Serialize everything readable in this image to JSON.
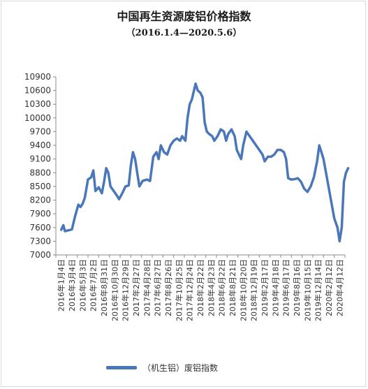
{
  "chart_data": {
    "type": "line",
    "title": "中国再生资源废铝价格指数",
    "subtitle": "（2016.1.4—2020.5.6）",
    "xlabel": "",
    "ylabel": "",
    "ylim": [
      7000,
      10900
    ],
    "yticks": [
      "7000",
      "7300",
      "7600",
      "7900",
      "8200",
      "8500",
      "8800",
      "9100",
      "9400",
      "9700",
      "10000",
      "10300",
      "10600",
      "10900"
    ],
    "x_tick_labels": [
      "2016年1月4日",
      "2016年3月4日",
      "2016年5月3日",
      "2016年7月2日",
      "2016年8月31日",
      "2016年10月30日",
      "2016年12月29日",
      "2017年2月27日",
      "2017年4月28日",
      "2017年6月27日",
      "2017年8月26日",
      "2017年10月25日",
      "2017年12月24日",
      "2018年2月22日",
      "2018年4月23日",
      "2018年6月22日",
      "2018年8月21日",
      "2018年10月20日",
      "2018年12月19日",
      "2019年2月17日",
      "2019年4月18日",
      "2019年6月17日",
      "2019年8月16日",
      "2019年10月15日",
      "2019年12月14日",
      "2020年2月12日",
      "2020年4月12日"
    ],
    "legend": {
      "position": "bottom"
    },
    "grid": false,
    "series": [
      {
        "name": "（机生铝）废铝指数",
        "color": "#4a76ba",
        "points": [
          [
            0,
            7550
          ],
          [
            0.2,
            7650
          ],
          [
            0.35,
            7520
          ],
          [
            0.7,
            7540
          ],
          [
            1.0,
            7560
          ],
          [
            1.3,
            7850
          ],
          [
            1.6,
            8100
          ],
          [
            1.8,
            8050
          ],
          [
            2.0,
            8120
          ],
          [
            2.2,
            8250
          ],
          [
            2.5,
            8650
          ],
          [
            2.8,
            8700
          ],
          [
            3.0,
            8850
          ],
          [
            3.2,
            8400
          ],
          [
            3.5,
            8480
          ],
          [
            3.8,
            8350
          ],
          [
            4.0,
            8600
          ],
          [
            4.2,
            8900
          ],
          [
            4.4,
            8800
          ],
          [
            4.6,
            8500
          ],
          [
            4.9,
            8400
          ],
          [
            5.2,
            8300
          ],
          [
            5.4,
            8220
          ],
          [
            5.7,
            8350
          ],
          [
            6.0,
            8500
          ],
          [
            6.3,
            8520
          ],
          [
            6.5,
            8950
          ],
          [
            6.7,
            9250
          ],
          [
            6.9,
            9100
          ],
          [
            7.1,
            8800
          ],
          [
            7.3,
            8500
          ],
          [
            7.6,
            8620
          ],
          [
            8.0,
            8650
          ],
          [
            8.3,
            8620
          ],
          [
            8.6,
            9150
          ],
          [
            8.9,
            9250
          ],
          [
            9.1,
            9100
          ],
          [
            9.3,
            9400
          ],
          [
            9.6,
            9250
          ],
          [
            9.9,
            9200
          ],
          [
            10.2,
            9400
          ],
          [
            10.5,
            9500
          ],
          [
            10.8,
            9550
          ],
          [
            11.1,
            9500
          ],
          [
            11.3,
            9600
          ],
          [
            11.6,
            9500
          ],
          [
            11.8,
            10000
          ],
          [
            12.0,
            10300
          ],
          [
            12.2,
            10400
          ],
          [
            12.4,
            10600
          ],
          [
            12.55,
            10750
          ],
          [
            12.75,
            10600
          ],
          [
            13.0,
            10550
          ],
          [
            13.2,
            10450
          ],
          [
            13.4,
            9900
          ],
          [
            13.6,
            9700
          ],
          [
            13.8,
            9650
          ],
          [
            14.1,
            9600
          ],
          [
            14.3,
            9500
          ],
          [
            14.6,
            9600
          ],
          [
            14.9,
            9750
          ],
          [
            15.2,
            9700
          ],
          [
            15.4,
            9500
          ],
          [
            15.6,
            9650
          ],
          [
            15.9,
            9750
          ],
          [
            16.2,
            9600
          ],
          [
            16.4,
            9300
          ],
          [
            16.6,
            9200
          ],
          [
            16.8,
            9100
          ],
          [
            17.0,
            9400
          ],
          [
            17.3,
            9700
          ],
          [
            17.6,
            9600
          ],
          [
            17.9,
            9500
          ],
          [
            18.2,
            9400
          ],
          [
            18.5,
            9300
          ],
          [
            18.8,
            9200
          ],
          [
            19.0,
            9050
          ],
          [
            19.3,
            9150
          ],
          [
            19.6,
            9150
          ],
          [
            19.9,
            9200
          ],
          [
            20.2,
            9300
          ],
          [
            20.5,
            9300
          ],
          [
            20.8,
            9250
          ],
          [
            21.0,
            9100
          ],
          [
            21.2,
            8680
          ],
          [
            21.5,
            8650
          ],
          [
            21.8,
            8660
          ],
          [
            22.1,
            8680
          ],
          [
            22.4,
            8600
          ],
          [
            22.7,
            8450
          ],
          [
            23.0,
            8380
          ],
          [
            23.3,
            8500
          ],
          [
            23.6,
            8700
          ],
          [
            23.9,
            9050
          ],
          [
            24.1,
            9400
          ],
          [
            24.3,
            9250
          ],
          [
            24.5,
            9100
          ],
          [
            25.0,
            8450
          ],
          [
            25.5,
            7800
          ],
          [
            25.8,
            7600
          ],
          [
            26.0,
            7300
          ],
          [
            26.2,
            7600
          ],
          [
            26.4,
            8600
          ],
          [
            26.6,
            8800
          ],
          [
            26.8,
            8900
          ]
        ]
      }
    ]
  }
}
